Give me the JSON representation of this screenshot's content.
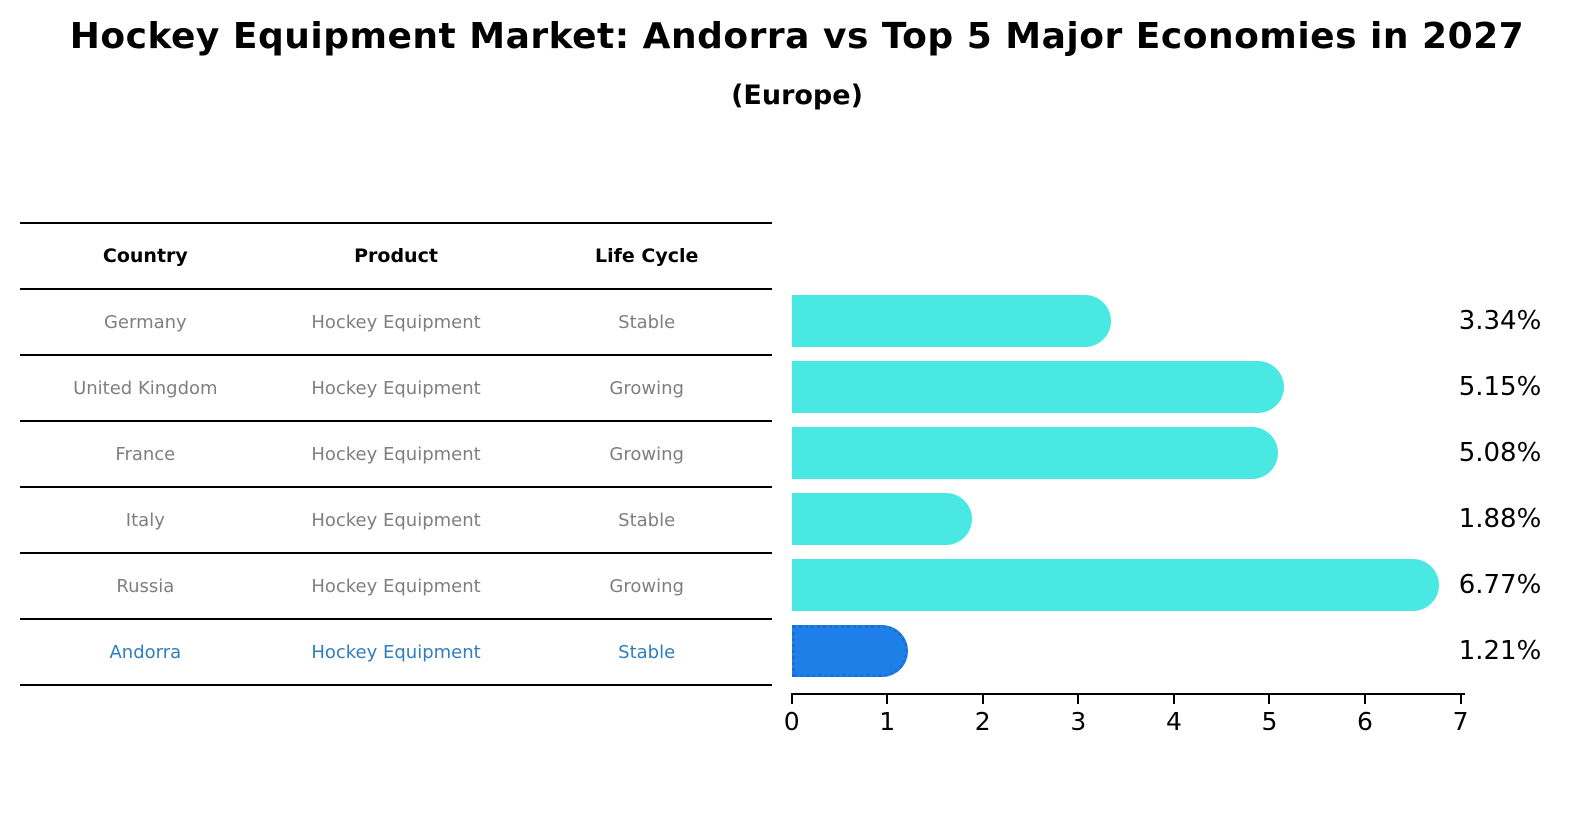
{
  "title": "Hockey Equipment Market: Andorra vs Top 5 Major Economies in 2027",
  "subtitle": "(Europe)",
  "table": {
    "headers": [
      "Country",
      "Product",
      "Life Cycle"
    ],
    "rows": [
      {
        "country": "Germany",
        "product": "Hockey Equipment",
        "life_cycle": "Stable"
      },
      {
        "country": "United Kingdom",
        "product": "Hockey Equipment",
        "life_cycle": "Growing"
      },
      {
        "country": "France",
        "product": "Hockey Equipment",
        "life_cycle": "Growing"
      },
      {
        "country": "Italy",
        "product": "Hockey Equipment",
        "life_cycle": "Stable"
      },
      {
        "country": "Russia",
        "product": "Hockey Equipment",
        "life_cycle": "Growing"
      },
      {
        "country": "Andorra",
        "product": "Hockey Equipment",
        "life_cycle": "Stable"
      }
    ]
  },
  "chart_data": {
    "type": "bar",
    "orientation": "horizontal",
    "categories": [
      "Germany",
      "United Kingdom",
      "France",
      "Italy",
      "Russia",
      "Andorra"
    ],
    "values": [
      3.34,
      5.15,
      5.08,
      1.88,
      6.77,
      1.21
    ],
    "value_labels": [
      "3.34%",
      "5.15%",
      "5.08%",
      "1.88%",
      "6.77%",
      "1.21%"
    ],
    "title": "Hockey Equipment Market: Andorra vs Top 5 Major Economies in 2027 (Europe)",
    "xlabel": "",
    "ylabel": "",
    "xlim": [
      0,
      7
    ],
    "xticks": [
      "0",
      "1",
      "2",
      "3",
      "4",
      "5",
      "6",
      "7"
    ],
    "grid": false,
    "legend": false,
    "bar_color": "#4ae8e2",
    "highlight_color": "#1f7fe8",
    "highlight_index": 5,
    "highlight_category": "Andorra"
  }
}
